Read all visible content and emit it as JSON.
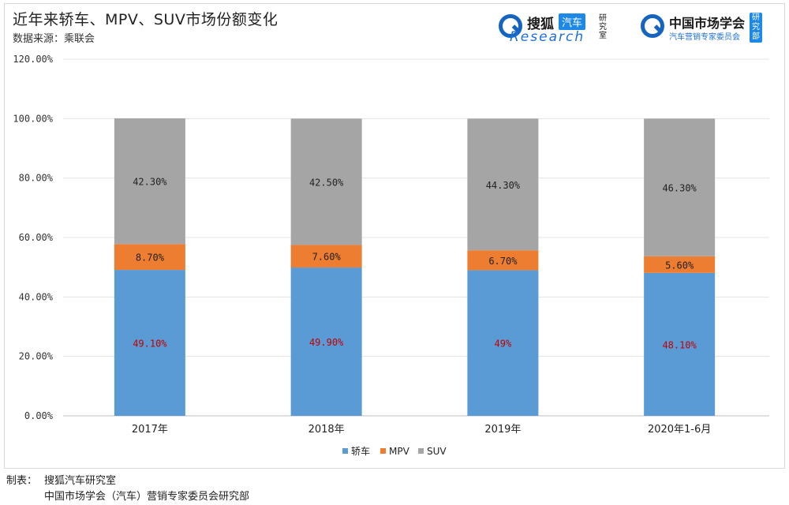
{
  "chart_data": {
    "type": "bar",
    "stacked": true,
    "title": "近年来轿车、MPV、SUV市场份额变化",
    "subtitle": "数据来源：乘联会",
    "categories": [
      "2017年",
      "2018年",
      "2019年",
      "2020年1-6月"
    ],
    "series": [
      {
        "name": "轿车",
        "values": [
          49.1,
          49.9,
          49.0,
          48.1
        ],
        "labels": [
          "49.10%",
          "49.90%",
          "49%",
          "48.10%"
        ],
        "color": "#5b9bd5",
        "label_color": "#c00000"
      },
      {
        "name": "MPV",
        "values": [
          8.7,
          7.6,
          6.7,
          5.6
        ],
        "labels": [
          "8.70%",
          "7.60%",
          "6.70%",
          "5.60%"
        ],
        "color": "#ed7d31",
        "label_color": "#222222"
      },
      {
        "name": "SUV",
        "values": [
          42.3,
          42.5,
          44.3,
          46.3
        ],
        "labels": [
          "42.30%",
          "42.50%",
          "44.30%",
          "46.30%"
        ],
        "color": "#a5a5a5",
        "label_color": "#222222"
      }
    ],
    "y_ticks": [
      "0.00%",
      "20.00%",
      "40.00%",
      "60.00%",
      "80.00%",
      "100.00%",
      "120.00%"
    ],
    "ylim": [
      0,
      120
    ],
    "grid": true,
    "legend_position": "bottom"
  },
  "logos": {
    "sohu": {
      "cn_main": "搜狐",
      "cn_tag": "汽车",
      "en": "Research",
      "side": "研究室"
    },
    "cmsa": {
      "name": "中国市场学会",
      "sub": "汽车营销专家委员会",
      "side": "研究部"
    }
  },
  "footer": {
    "label": "制表：",
    "line1": "搜狐汽车研究室",
    "line2": "中国市场学会（汽车）营销专家委员会研究部"
  }
}
